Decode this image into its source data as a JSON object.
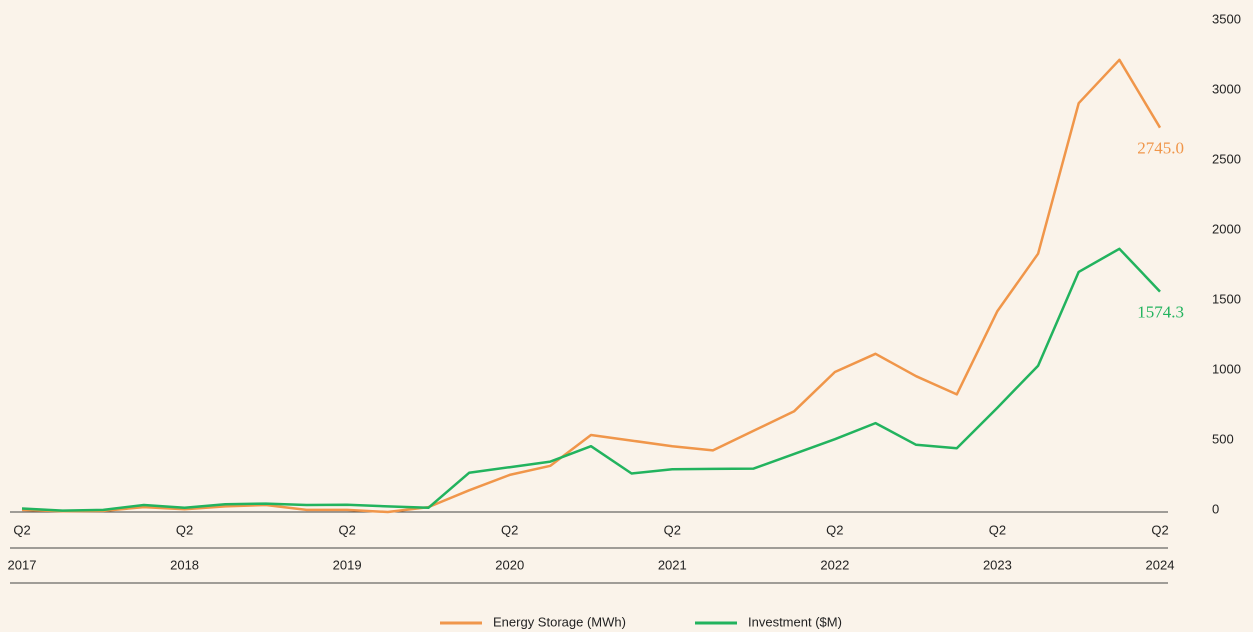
{
  "chart_data": {
    "type": "line",
    "categories": [
      "Q2",
      null,
      null,
      null,
      "Q2",
      null,
      null,
      null,
      "Q2",
      null,
      null,
      null,
      "Q2",
      null,
      null,
      null,
      "Q2",
      null,
      null,
      null,
      "Q2",
      null,
      null,
      null,
      "Q2",
      null,
      null,
      null,
      "Q2"
    ],
    "years": [
      "2017",
      "2018",
      "2019",
      "2020",
      "2021",
      "2022",
      "2023",
      "2024"
    ],
    "series": [
      {
        "name": "Energy Storage (MWh)",
        "color": "#f0964a",
        "values": [
          15,
          5,
          8,
          35,
          20,
          40,
          50,
          15,
          15,
          0,
          35,
          155,
          265,
          330,
          550,
          510,
          470,
          440,
          580,
          720,
          1000,
          1130,
          970,
          840,
          1435,
          1845,
          2920,
          3230,
          2745
        ],
        "value_labels": [
          null,
          null,
          null,
          null,
          null,
          null,
          null,
          null,
          null,
          null,
          null,
          null,
          null,
          null,
          null,
          null,
          null,
          null,
          null,
          null,
          null,
          null,
          null,
          null,
          null,
          null,
          null,
          null,
          "2745.0"
        ]
      },
      {
        "name": "Investment ($M)",
        "color": "#22b35e",
        "values": [
          25,
          10,
          15,
          50,
          30,
          55,
          60,
          50,
          52,
          40,
          30,
          280,
          320,
          360,
          470,
          275,
          305,
          308,
          310,
          415,
          520,
          635,
          480,
          455,
          745,
          1045,
          1715,
          1880,
          1574.3
        ],
        "value_labels": [
          null,
          null,
          null,
          null,
          null,
          null,
          null,
          null,
          null,
          null,
          null,
          null,
          null,
          null,
          null,
          null,
          null,
          null,
          null,
          null,
          null,
          null,
          null,
          null,
          null,
          null,
          null,
          null,
          "1574.3"
        ]
      }
    ],
    "ylim": [
      0,
      3500
    ],
    "yticks": [
      0,
      500,
      1000,
      1500,
      2000,
      2500,
      3000,
      3500
    ],
    "legend": "bottom"
  }
}
